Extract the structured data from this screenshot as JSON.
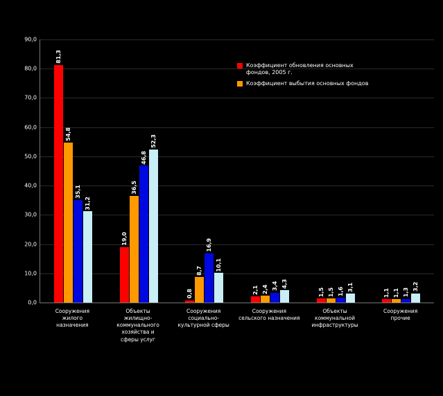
{
  "chart_data": {
    "type": "bar",
    "title": "",
    "xlabel": "",
    "ylabel": "",
    "ylim": [
      0,
      90
    ],
    "ytick_step": 10,
    "grid": true,
    "legend_position": "top-right",
    "decimal_separator": ",",
    "categories": [
      "Сооружения\nжилого\nназначения",
      "Объекты\nжилищно-\nкоммунального\nхозяйства и\nсферы услуг",
      "Сооружения\nсоциально-\nкультурной сферы",
      "Сооружения\nсельского назначения",
      "Объекты\nкоммунальной инфраструктуры",
      "Сооружения\nпрочие"
    ],
    "series": [
      {
        "name": "Коэффициент обновления основных фондов, 2005 г.",
        "color": "#ff0000",
        "in_legend": true,
        "values": [
          81.3,
          19.0,
          0.8,
          2.1,
          1.5,
          1.1
        ]
      },
      {
        "name": "Коэффициент выбытия основных фондов",
        "color": "#ff9900",
        "in_legend": true,
        "values": [
          54.8,
          36.5,
          8.7,
          2.4,
          1.5,
          1.1
        ]
      },
      {
        "name": "",
        "color": "#0008e0",
        "in_legend": false,
        "values": [
          35.1,
          46.8,
          16.9,
          3.4,
          1.6,
          1.3
        ]
      },
      {
        "name": "",
        "color": "#c9eef5",
        "in_legend": false,
        "values": [
          31.2,
          52.3,
          10.1,
          4.3,
          3.1,
          3.2
        ]
      }
    ]
  }
}
